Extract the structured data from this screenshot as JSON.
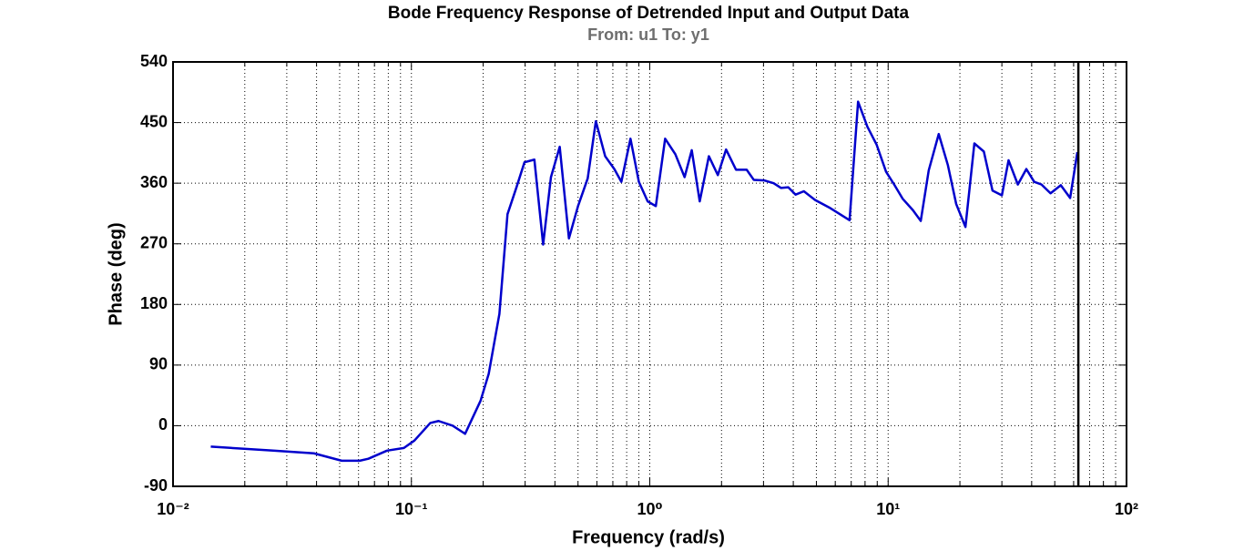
{
  "chart_data": {
    "type": "line",
    "title": "Bode Frequency Response of Detrended Input and Output Data",
    "subtitle": "From: u1  To: y1",
    "xlabel": "Frequency  (rad/s)",
    "ylabel": "Phase (deg)",
    "xscale": "log",
    "grid": true,
    "color": "#0000cc",
    "vline": 62.8,
    "vline_color": "#000000",
    "xlim": [
      0.01,
      100
    ],
    "xticks": [
      {
        "value": 0.01,
        "label": "10⁻²"
      },
      {
        "value": 0.1,
        "label": "10⁻¹"
      },
      {
        "value": 1,
        "label": "10⁰"
      },
      {
        "value": 10,
        "label": "10¹"
      },
      {
        "value": 100,
        "label": "10²"
      }
    ],
    "ylim": [
      -90,
      540
    ],
    "yticks": [
      -90,
      0,
      90,
      180,
      270,
      360,
      450,
      540
    ],
    "x": [
      0.0144,
      0.0263,
      0.039,
      0.051,
      0.0607,
      0.066,
      0.079,
      0.093,
      0.103,
      0.12,
      0.13,
      0.149,
      0.168,
      0.195,
      0.211,
      0.234,
      0.253,
      0.276,
      0.298,
      0.328,
      0.357,
      0.385,
      0.419,
      0.458,
      0.5,
      0.549,
      0.594,
      0.65,
      0.71,
      0.76,
      0.83,
      0.9,
      0.98,
      1.06,
      1.16,
      1.28,
      1.4,
      1.5,
      1.62,
      1.77,
      1.93,
      2.09,
      2.3,
      2.55,
      2.73,
      3.03,
      3.31,
      3.55,
      3.81,
      4.09,
      4.43,
      4.94,
      5.72,
      6.89,
      7.48,
      8.18,
      8.95,
      9.8,
      10.6,
      11.5,
      12.7,
      13.7,
      14.8,
      16.3,
      17.8,
      19.3,
      21.1,
      23.0,
      25.2,
      27.4,
      30.0,
      32.0,
      35.0,
      38.0,
      41.0,
      44.0,
      48.0,
      53.0,
      58.0,
      62.2
    ],
    "values": [
      -31,
      -37,
      -41,
      -52,
      -52,
      -49,
      -37,
      -33,
      -22,
      4,
      7,
      0,
      -12,
      37,
      77,
      166,
      314,
      354,
      391,
      395,
      269,
      369,
      414,
      278,
      326,
      367,
      452,
      400,
      381,
      362,
      426,
      362,
      333,
      326,
      426,
      403,
      369,
      409,
      333,
      400,
      372,
      410,
      380,
      380,
      365,
      364,
      360,
      353,
      354,
      343,
      348,
      335,
      323,
      305,
      481,
      444,
      417,
      377,
      358,
      337,
      320,
      304,
      379,
      433,
      387,
      329,
      295,
      419,
      407,
      349,
      342,
      394,
      358,
      381,
      362,
      358,
      345,
      357,
      338,
      406
    ]
  }
}
